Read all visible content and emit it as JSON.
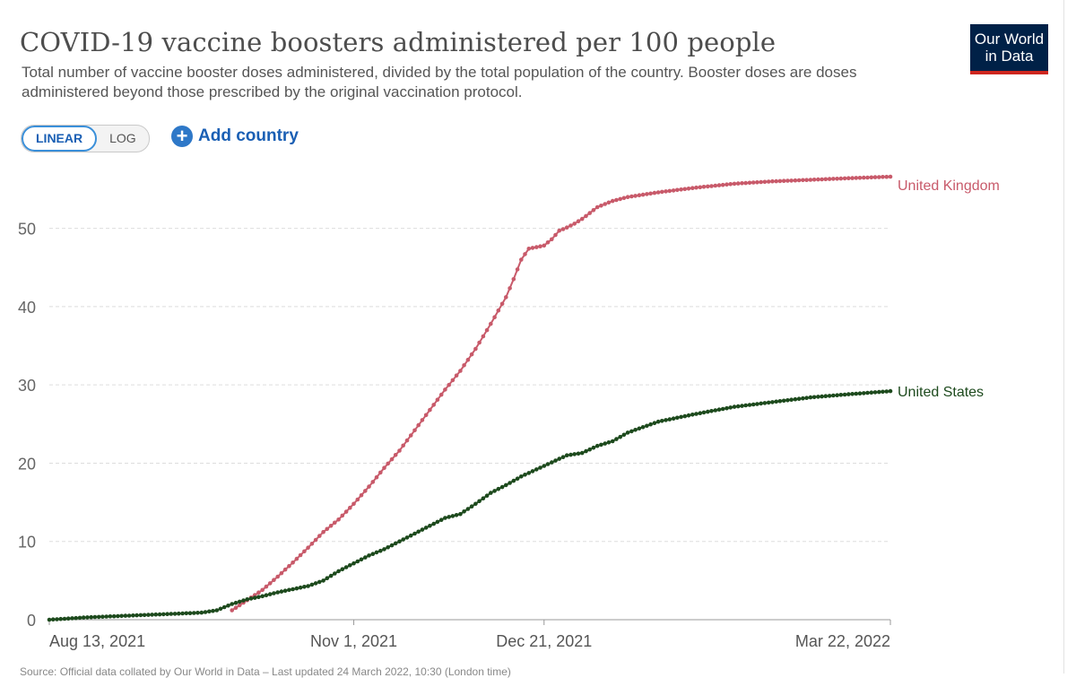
{
  "header": {
    "title": "COVID-19 vaccine boosters administered per 100 people",
    "subtitle": "Total number of vaccine booster doses administered, divided by the total population of the country. Booster doses are doses administered beyond those prescribed by the original vaccination protocol."
  },
  "logo": {
    "line1": "Our World",
    "line2": "in Data"
  },
  "controls": {
    "linear_label": "LINEAR",
    "log_label": "LOG",
    "add_country_label": "Add country",
    "add_icon": "plus-circle-icon"
  },
  "footer": {
    "text": "Source: Official data collated by Our World in Data – Last updated 24 March 2022, 10:30 (London time)"
  },
  "colors": {
    "uk": "#c85a6a",
    "us": "#1d4a1d",
    "grid": "#dddddd",
    "axis": "#666666",
    "accent": "#1a5fb4"
  },
  "chart_data": {
    "type": "line",
    "title": "COVID-19 vaccine boosters administered per 100 people",
    "xlabel": "",
    "ylabel": "",
    "y_ticks": [
      0,
      10,
      20,
      30,
      40,
      50
    ],
    "ylim": [
      0,
      56.6
    ],
    "x_ticks": [
      {
        "label": "Aug 13, 2021",
        "day": 0
      },
      {
        "label": "Nov 1, 2021",
        "day": 80
      },
      {
        "label": "Dec 21, 2021",
        "day": 130
      },
      {
        "label": "Mar 22, 2022",
        "day": 221
      }
    ],
    "xlim": [
      0,
      221
    ],
    "grid": true,
    "legend": "line-end labels",
    "series": [
      {
        "name": "United Kingdom",
        "color": "#c85a6a",
        "x": [
          48,
          52,
          56,
          60,
          64,
          68,
          72,
          76,
          80,
          84,
          88,
          92,
          96,
          100,
          104,
          108,
          112,
          116,
          120,
          122,
          124,
          126,
          128,
          130,
          132,
          134,
          136,
          138,
          140,
          144,
          148,
          152,
          160,
          170,
          180,
          190,
          200,
          210,
          221
        ],
        "y": [
          1.2,
          2.5,
          3.8,
          5.5,
          7.3,
          9.2,
          11.2,
          12.8,
          14.8,
          17.0,
          19.4,
          21.6,
          24.2,
          26.8,
          29.4,
          31.8,
          34.6,
          37.8,
          41.2,
          43.5,
          46.0,
          47.4,
          47.6,
          47.8,
          48.6,
          49.7,
          50.1,
          50.6,
          51.2,
          52.7,
          53.5,
          54.0,
          54.6,
          55.2,
          55.7,
          56.0,
          56.2,
          56.4,
          56.6
        ]
      },
      {
        "name": "United States",
        "color": "#1d4a1d",
        "x": [
          0,
          10,
          20,
          30,
          40,
          44,
          48,
          52,
          56,
          60,
          64,
          68,
          72,
          76,
          80,
          84,
          88,
          92,
          96,
          100,
          104,
          108,
          112,
          116,
          120,
          124,
          128,
          132,
          136,
          140,
          144,
          148,
          152,
          156,
          160,
          170,
          180,
          190,
          200,
          210,
          221
        ],
        "y": [
          0,
          0.3,
          0.5,
          0.7,
          0.9,
          1.2,
          2.0,
          2.6,
          3.0,
          3.5,
          3.9,
          4.3,
          5.0,
          6.2,
          7.2,
          8.2,
          9.0,
          10.0,
          11.0,
          12.0,
          13.0,
          13.5,
          14.8,
          16.2,
          17.2,
          18.3,
          19.2,
          20.1,
          21.0,
          21.3,
          22.2,
          22.8,
          23.9,
          24.6,
          25.3,
          26.3,
          27.2,
          27.8,
          28.4,
          28.8,
          29.2
        ]
      }
    ]
  }
}
